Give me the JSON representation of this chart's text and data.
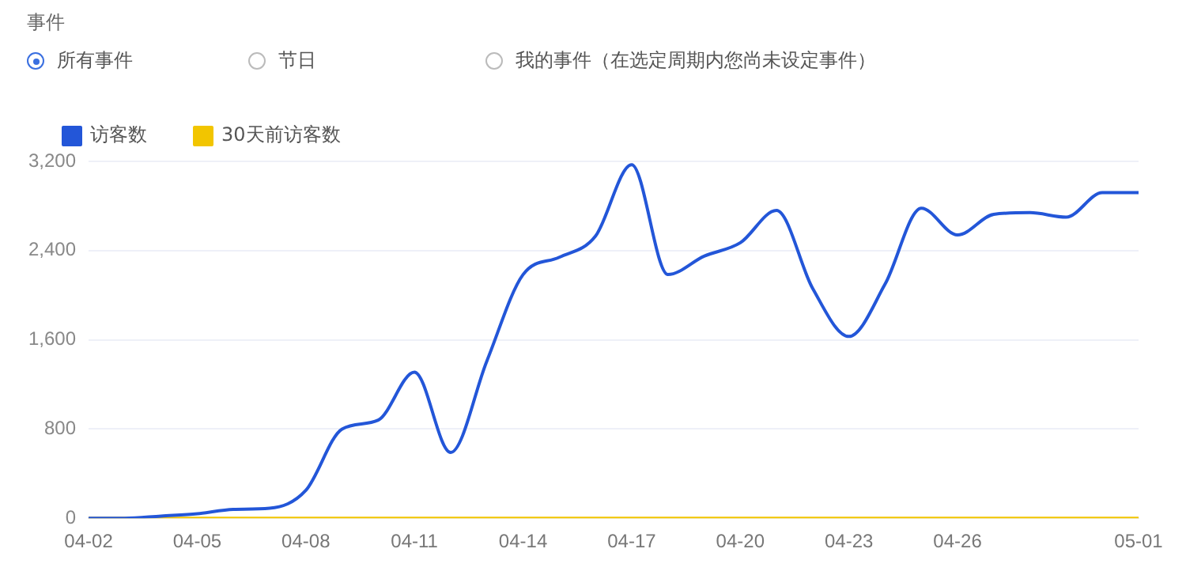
{
  "chart_data": {
    "type": "line",
    "annotations": [
      "事件",
      "所有事件",
      "节日",
      "我的事件（在选定周期内您尚未设定事件）"
    ],
    "categories": [
      "04-02",
      null,
      null,
      "04-05",
      null,
      null,
      "04-08",
      null,
      null,
      "04-11",
      null,
      null,
      "04-14",
      null,
      null,
      "04-17",
      null,
      null,
      "04-20",
      null,
      null,
      "04-23",
      null,
      null,
      "04-26",
      null,
      null,
      null,
      null,
      "05-01"
    ],
    "series": [
      {
        "name": "访客数",
        "color": "#2356d8",
        "values": [
          0,
          0,
          20,
          40,
          80,
          90,
          250,
          800,
          880,
          1310,
          590,
          1410,
          2185,
          2340,
          2530,
          3170,
          2185,
          2350,
          2470,
          2760,
          2060,
          1630,
          2100,
          2780,
          2540,
          2725,
          2740,
          2700,
          2920,
          2920
        ]
      },
      {
        "name": "30天前访客数",
        "color": "#f2c500",
        "values": [
          0,
          0,
          0,
          0,
          0,
          0,
          0,
          0,
          0,
          0,
          0,
          0,
          0,
          0,
          0,
          0,
          0,
          0,
          0,
          0,
          0,
          0,
          0,
          0,
          0,
          0,
          0,
          0,
          0,
          0
        ]
      }
    ],
    "ylim": [
      0,
      3200
    ],
    "yticks": [
      {
        "value": 0,
        "label": "0"
      },
      {
        "value": 800,
        "label": "800"
      },
      {
        "value": 1600,
        "label": "1,600"
      },
      {
        "value": 2400,
        "label": "2,400"
      },
      {
        "value": 3200,
        "label": "3,200"
      }
    ],
    "grid": "y",
    "legend": "top left",
    "marker": "none",
    "line_style": "solid"
  }
}
